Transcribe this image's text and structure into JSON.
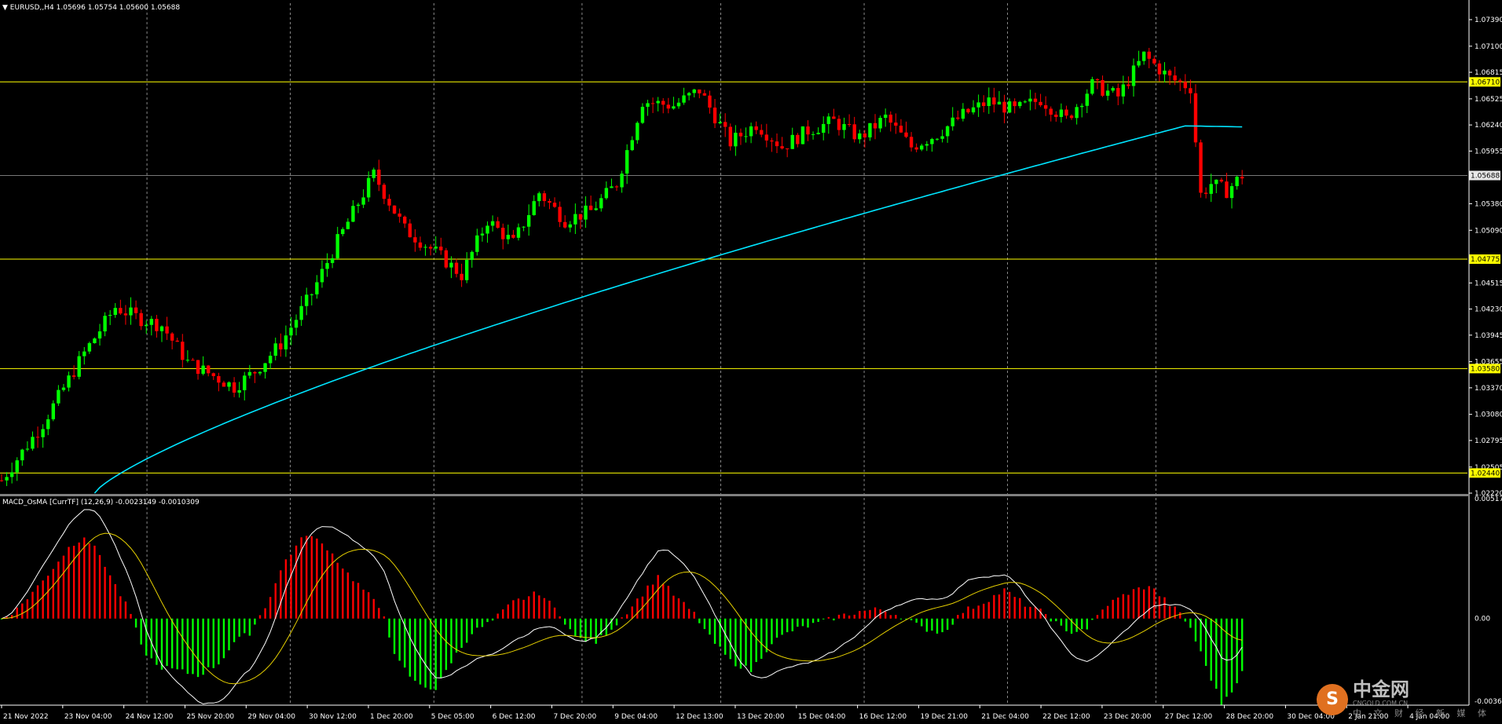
{
  "header": {
    "symbol_line": "EURUSD,,H4  1.05696 1.05754 1.05600 1.05688",
    "indicator_line": "MACD_OsMA [CurrTF] (12,26,9) -0.0023149 -0.0010309"
  },
  "watermark": {
    "logo_glyph": "S",
    "name": "中金网",
    "domain": "CNGOLD.COM.CN",
    "tagline": "中 文 财 经 新 媒 体"
  },
  "colors": {
    "bull": "#00ff00",
    "bear": "#ff0000",
    "ma": "#00e5ff",
    "level": "#ffff00",
    "price_line": "#a0a0a0",
    "grid": "#ffffff"
  },
  "chart_data": [
    {
      "type": "candlestick",
      "symbol": "EURUSD",
      "timeframe": "H4",
      "ylim": [
        1.0222,
        1.0757
      ],
      "y_ticks": [
        "1.07390",
        "1.07100",
        "1.06815",
        "1.06525",
        "1.06240",
        "1.05955",
        "1.05380",
        "1.05090",
        "1.04515",
        "1.04230",
        "1.03945",
        "1.03655",
        "1.03370",
        "1.03080",
        "1.02795",
        "1.02505",
        "1.02220"
      ],
      "x_ticks": [
        "21 Nov 2022",
        "23 Nov 04:00",
        "24 Nov 12:00",
        "25 Nov 20:00",
        "29 Nov 04:00",
        "30 Nov 12:00",
        "1 Dec 20:00",
        "5 Dec 05:00",
        "6 Dec 12:00",
        "7 Dec 20:00",
        "9 Dec 04:00",
        "12 Dec 13:00",
        "13 Dec 20:00",
        "15 Dec 04:00",
        "16 Dec 12:00",
        "19 Dec 21:00",
        "21 Dec 04:00",
        "22 Dec 12:00",
        "23 Dec 20:00",
        "27 Dec 12:00",
        "28 Dec 20:00",
        "30 Dec 04:00",
        "2 Jan 21:00",
        "4 Jan 04:00"
      ],
      "levels": [
        {
          "label": "1.06710",
          "value": 1.0671
        },
        {
          "label": "1.04775",
          "value": 1.04775
        },
        {
          "label": "1.03580",
          "value": 1.0358
        },
        {
          "label": "1.02440",
          "value": 1.0244
        }
      ],
      "current_price": {
        "label": "1.05688",
        "value": 1.05688
      },
      "close_waypoints": [
        [
          0,
          1.0236
        ],
        [
          8,
          1.0298
        ],
        [
          16,
          1.0375
        ],
        [
          22,
          1.0425
        ],
        [
          27,
          1.0412
        ],
        [
          31,
          1.0405
        ],
        [
          36,
          1.0365
        ],
        [
          41,
          1.035
        ],
        [
          45,
          1.0338
        ],
        [
          49,
          1.0355
        ],
        [
          54,
          1.0385
        ],
        [
          60,
          1.044
        ],
        [
          65,
          1.0497
        ],
        [
          72,
          1.057
        ],
        [
          78,
          1.051
        ],
        [
          84,
          1.0485
        ],
        [
          89,
          1.046
        ],
        [
          94,
          1.052
        ],
        [
          99,
          1.0495
        ],
        [
          104,
          1.055
        ],
        [
          109,
          1.052
        ],
        [
          114,
          1.053
        ],
        [
          119,
          1.056
        ],
        [
          124,
          1.065
        ],
        [
          130,
          1.0645
        ],
        [
          135,
          1.0662
        ],
        [
          141,
          1.0605
        ],
        [
          146,
          1.0625
        ],
        [
          151,
          1.06
        ],
        [
          156,
          1.0618
        ],
        [
          161,
          1.0628
        ],
        [
          166,
          1.061
        ],
        [
          171,
          1.0632
        ],
        [
          176,
          1.06
        ],
        [
          181,
          1.0614
        ],
        [
          186,
          1.0635
        ],
        [
          191,
          1.065
        ],
        [
          196,
          1.064
        ],
        [
          201,
          1.0652
        ],
        [
          206,
          1.063
        ],
        [
          211,
          1.0668
        ],
        [
          216,
          1.0655
        ],
        [
          221,
          1.07
        ],
        [
          226,
          1.0675
        ],
        [
          230,
          1.0665
        ],
        [
          232,
          1.0548
        ],
        [
          234,
          1.056
        ],
        [
          237,
          1.0552
        ],
        [
          240,
          1.0569
        ]
      ],
      "ma": {
        "start": [
          18,
          1.0222
        ],
        "end": [
          240,
          1.0622
        ],
        "peak": [
          229,
          1.0623
        ]
      }
    },
    {
      "type": "histogram",
      "name": "MACD_OsMA [CurrTF] (12,26,9)",
      "ylim": [
        -0.00366,
        0.00517
      ],
      "y_ticks": [
        "0.0051757",
        "0.00",
        "-0.003666"
      ],
      "osma_waypoints": [
        [
          0,
          0.0
        ],
        [
          3,
          0.0004
        ],
        [
          8,
          0.0016
        ],
        [
          13,
          0.003
        ],
        [
          16,
          0.0035
        ],
        [
          19,
          0.0027
        ],
        [
          22,
          0.0014
        ],
        [
          25,
          0.0002
        ],
        [
          27,
          -0.0012
        ],
        [
          30,
          -0.002
        ],
        [
          34,
          -0.0022
        ],
        [
          38,
          -0.0024
        ],
        [
          42,
          -0.0019
        ],
        [
          45,
          -0.001
        ],
        [
          48,
          -0.0006
        ],
        [
          51,
          0.0005
        ],
        [
          55,
          0.0025
        ],
        [
          59,
          0.0036
        ],
        [
          63,
          0.003
        ],
        [
          67,
          0.0019
        ],
        [
          71,
          0.001
        ],
        [
          74,
          0.0002
        ],
        [
          76,
          -0.0016
        ],
        [
          80,
          -0.0027
        ],
        [
          84,
          -0.003
        ],
        [
          87,
          -0.0018
        ],
        [
          91,
          -0.0006
        ],
        [
          95,
          -0.0001
        ],
        [
          99,
          0.0007
        ],
        [
          104,
          0.0011
        ],
        [
          108,
          0.0002
        ],
        [
          111,
          -0.0008
        ],
        [
          115,
          -0.001
        ],
        [
          119,
          -0.0002
        ],
        [
          123,
          0.0008
        ],
        [
          127,
          0.0018
        ],
        [
          130,
          0.001
        ],
        [
          134,
          0.0002
        ],
        [
          137,
          -0.0008
        ],
        [
          141,
          -0.0018
        ],
        [
          145,
          -0.0022
        ],
        [
          149,
          -0.001
        ],
        [
          153,
          -0.0005
        ],
        [
          158,
          -0.0002
        ],
        [
          162,
          0.0001
        ],
        [
          166,
          0.0003
        ],
        [
          170,
          0.0004
        ],
        [
          174,
          0.0001
        ],
        [
          178,
          -0.0004
        ],
        [
          182,
          -0.0006
        ],
        [
          186,
          0.0003
        ],
        [
          190,
          0.0007
        ],
        [
          194,
          0.0012
        ],
        [
          198,
          0.0006
        ],
        [
          202,
          0.0002
        ],
        [
          206,
          -0.0006
        ],
        [
          210,
          -0.0004
        ],
        [
          214,
          0.0006
        ],
        [
          218,
          0.0011
        ],
        [
          222,
          0.0014
        ],
        [
          225,
          0.0008
        ],
        [
          228,
          0.0002
        ],
        [
          230,
          -0.0004
        ],
        [
          233,
          -0.002
        ],
        [
          236,
          -0.0036
        ],
        [
          238,
          -0.003
        ],
        [
          240,
          -0.0023
        ]
      ]
    }
  ]
}
